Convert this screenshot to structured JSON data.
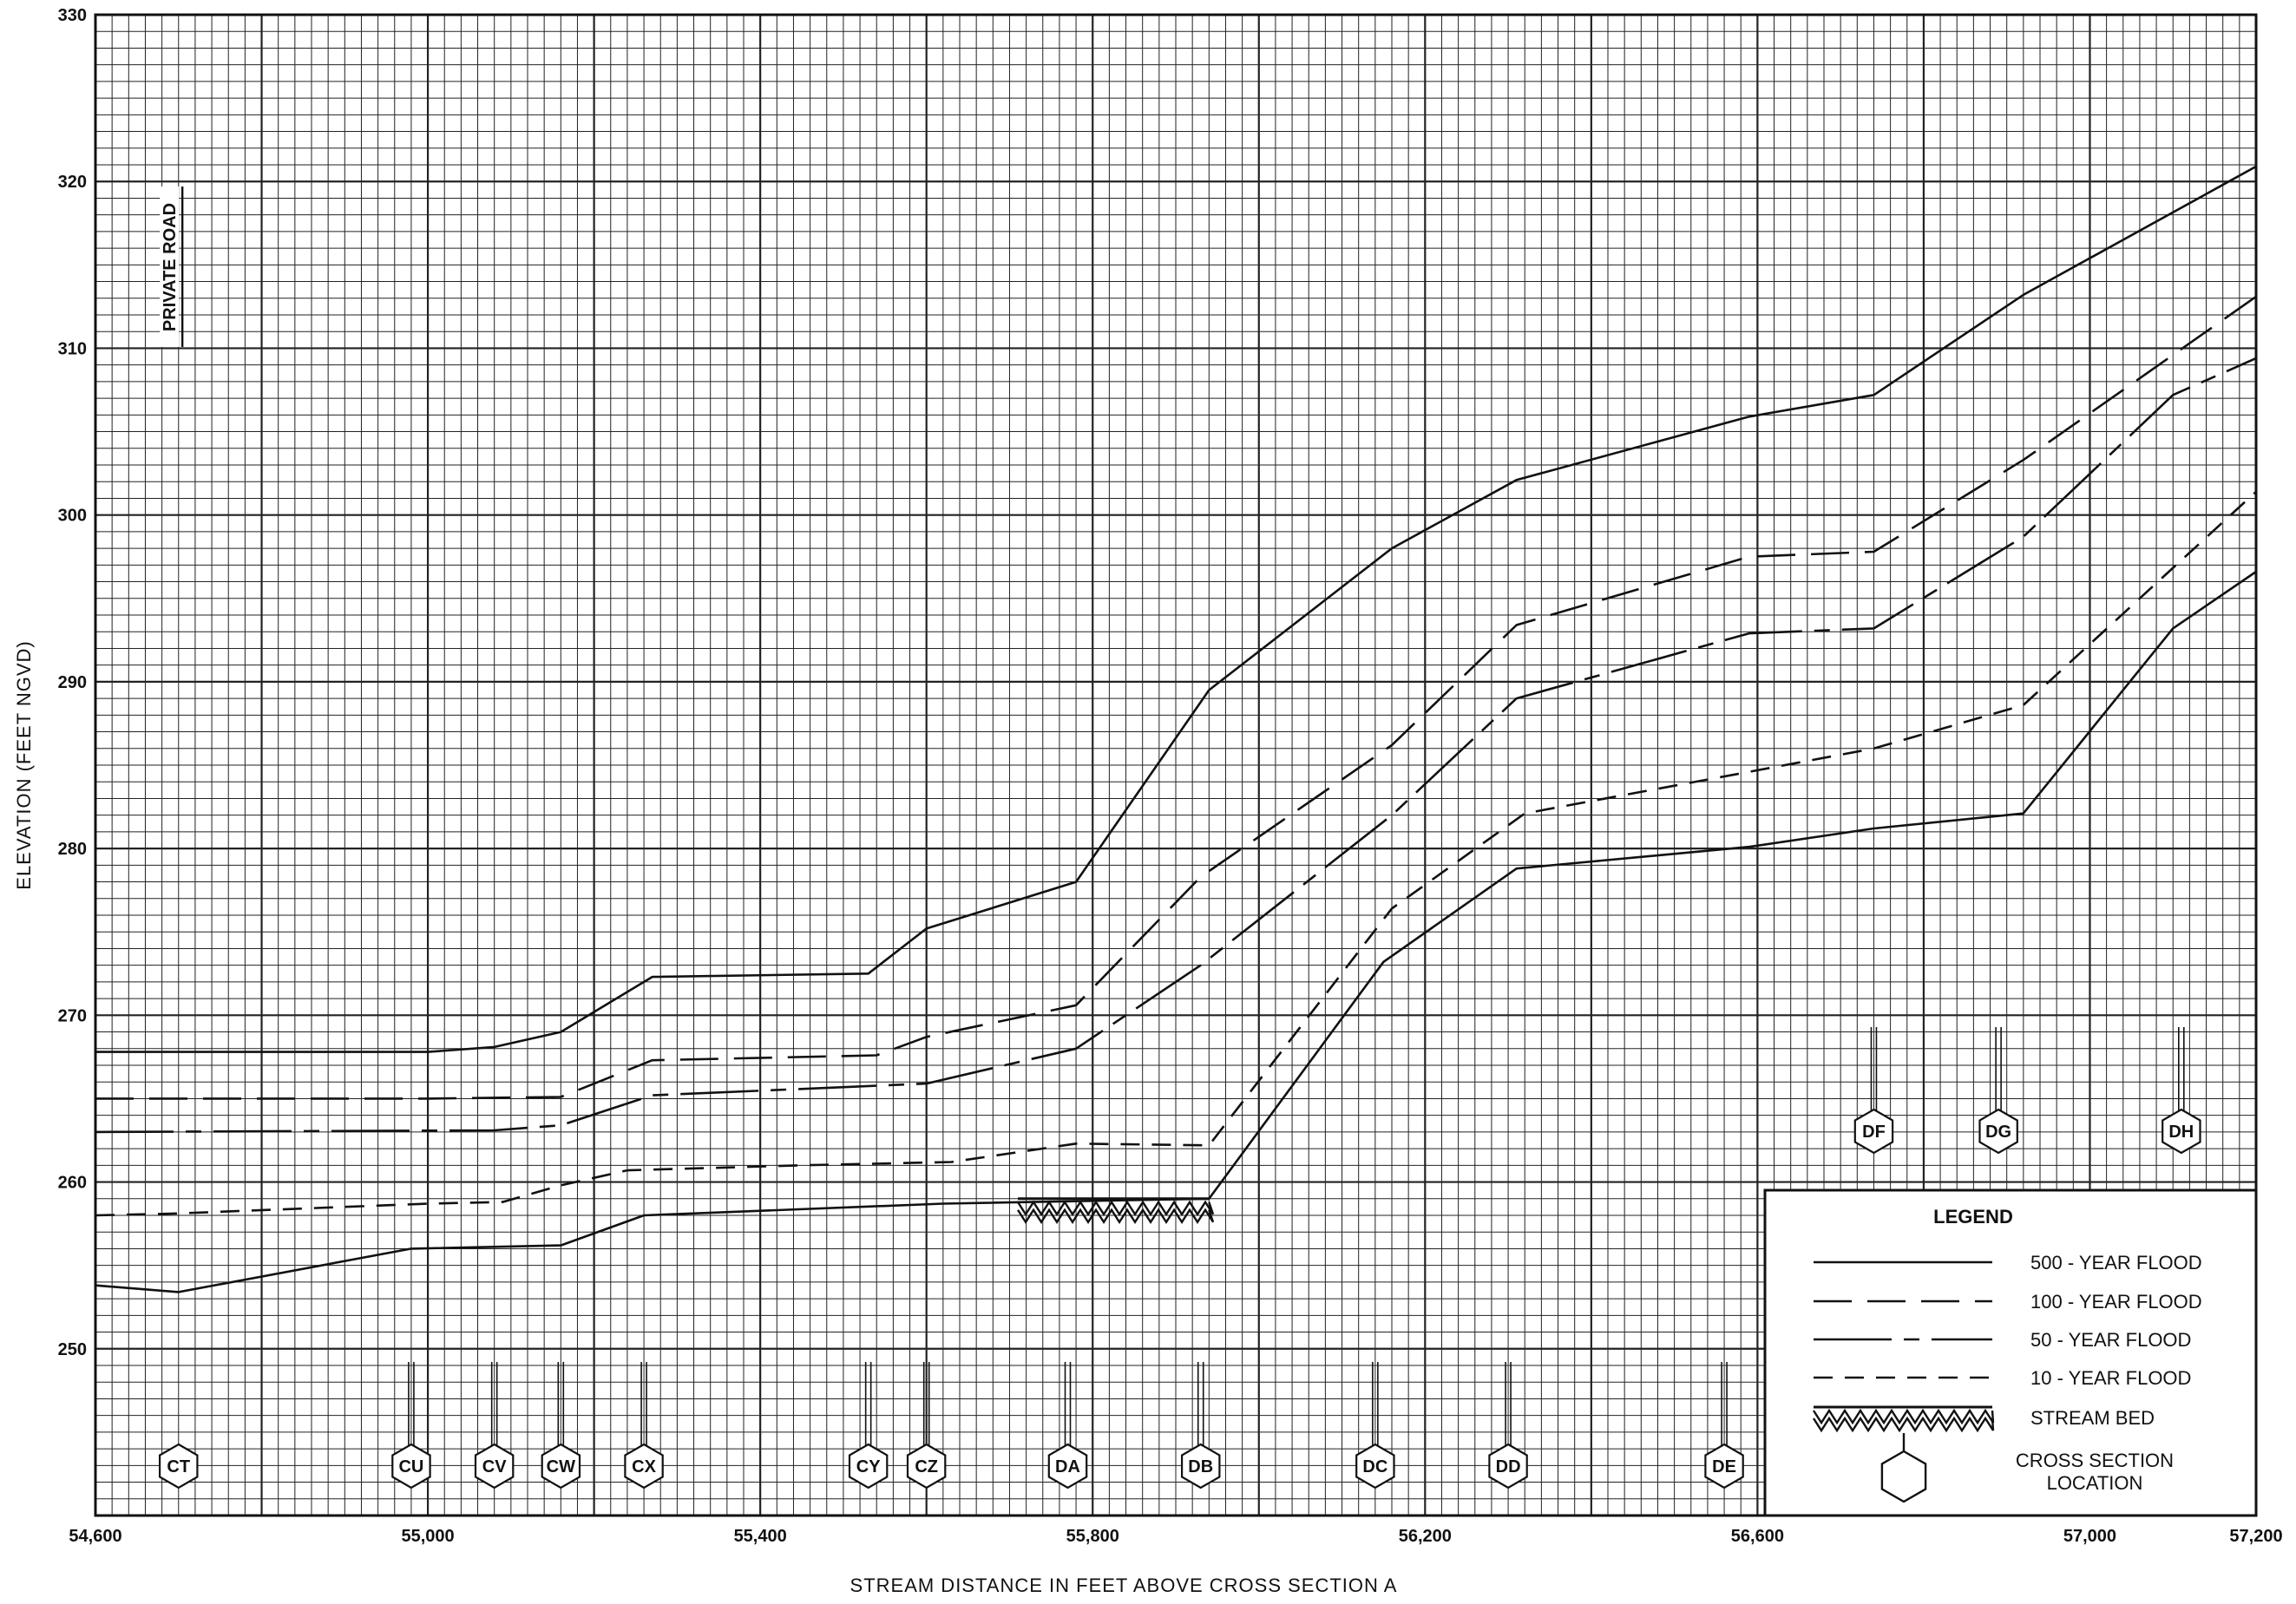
{
  "chart_data": {
    "type": "line",
    "title": "",
    "xlabel": "STREAM DISTANCE IN FEET ABOVE CROSS SECTION A",
    "ylabel": "ELEVATION (FEET NGVD)",
    "xlim": [
      54600,
      57200
    ],
    "ylim": [
      240,
      330
    ],
    "x_ticks": [
      54600,
      55000,
      55400,
      55800,
      56200,
      56600,
      57000,
      57200
    ],
    "x_tick_labels": [
      "54,600",
      "55,000",
      "55,400",
      "55,800",
      "56,200",
      "56,600",
      "57,000",
      "57,200"
    ],
    "y_ticks": [
      250,
      260,
      270,
      280,
      290,
      300,
      310,
      320,
      330
    ],
    "y_tick_labels": [
      "250",
      "260",
      "270",
      "280",
      "290",
      "300",
      "310",
      "320",
      "330"
    ],
    "grid": true,
    "legend_position": "bottom-right",
    "series": [
      {
        "name": "500 - YEAR FLOOD",
        "dash": "solid",
        "points": [
          [
            54600,
            267.8
          ],
          [
            55000,
            267.8
          ],
          [
            55080,
            268.1
          ],
          [
            55160,
            269.0
          ],
          [
            55270,
            272.3
          ],
          [
            55530,
            272.5
          ],
          [
            55600,
            275.2
          ],
          [
            55780,
            278.0
          ],
          [
            55940,
            289.5
          ],
          [
            56160,
            298.0
          ],
          [
            56310,
            302.1
          ],
          [
            56590,
            305.9
          ],
          [
            56740,
            307.2
          ],
          [
            56920,
            313.2
          ],
          [
            57200,
            320.9
          ]
        ]
      },
      {
        "name": "100 - YEAR FLOOD",
        "dash": "long-dash",
        "points": [
          [
            54600,
            265.0
          ],
          [
            54830,
            265.0
          ],
          [
            55000,
            265.0
          ],
          [
            55160,
            265.1
          ],
          [
            55270,
            267.3
          ],
          [
            55540,
            267.6
          ],
          [
            55600,
            268.7
          ],
          [
            55780,
            270.6
          ],
          [
            55930,
            278.3
          ],
          [
            56160,
            286.2
          ],
          [
            56310,
            293.4
          ],
          [
            56590,
            297.5
          ],
          [
            56740,
            297.8
          ],
          [
            56920,
            303.3
          ],
          [
            57200,
            313.1
          ]
        ]
      },
      {
        "name": "50 - YEAR FLOOD",
        "dash": "dash-dot",
        "points": [
          [
            54600,
            263.0
          ],
          [
            55080,
            263.1
          ],
          [
            55160,
            263.4
          ],
          [
            55270,
            265.2
          ],
          [
            55600,
            265.9
          ],
          [
            55780,
            268.0
          ],
          [
            55930,
            273.0
          ],
          [
            56160,
            282.0
          ],
          [
            56310,
            289.0
          ],
          [
            56590,
            292.9
          ],
          [
            56740,
            293.2
          ],
          [
            56920,
            298.7
          ],
          [
            57100,
            307.2
          ],
          [
            57200,
            309.4
          ]
        ]
      },
      {
        "name": "10 - YEAR FLOOD",
        "dash": "short-dash",
        "points": [
          [
            54600,
            258.0
          ],
          [
            54690,
            258.1
          ],
          [
            55000,
            258.7
          ],
          [
            55090,
            258.8
          ],
          [
            55160,
            259.8
          ],
          [
            55240,
            260.7
          ],
          [
            55450,
            261.0
          ],
          [
            55630,
            261.2
          ],
          [
            55780,
            262.3
          ],
          [
            55940,
            262.2
          ],
          [
            56160,
            276.4
          ],
          [
            56320,
            282.1
          ],
          [
            56590,
            284.6
          ],
          [
            56740,
            286.0
          ],
          [
            56920,
            288.6
          ],
          [
            57200,
            301.4
          ]
        ]
      },
      {
        "name": "STREAM BED",
        "dash": "solid",
        "points": [
          [
            54600,
            253.8
          ],
          [
            54700,
            253.4
          ],
          [
            54980,
            256.0
          ],
          [
            55160,
            256.2
          ],
          [
            55260,
            258.0
          ],
          [
            55620,
            258.7
          ],
          [
            55940,
            259.0
          ],
          [
            56150,
            273.2
          ],
          [
            56310,
            278.8
          ],
          [
            56590,
            280.1
          ],
          [
            56740,
            281.2
          ],
          [
            56920,
            282.1
          ],
          [
            57100,
            293.2
          ],
          [
            57200,
            296.6
          ]
        ]
      }
    ],
    "stream_bed_marker": {
      "x_start": 55710,
      "x_end": 55940,
      "elevation": 259.0
    },
    "cross_sections": [
      {
        "label": "CT",
        "x": 54700
      },
      {
        "label": "CU",
        "x": 54980
      },
      {
        "label": "CV",
        "x": 55080
      },
      {
        "label": "CW",
        "x": 55160
      },
      {
        "label": "CX",
        "x": 55260
      },
      {
        "label": "CY",
        "x": 55530
      },
      {
        "label": "CZ",
        "x": 55600
      },
      {
        "label": "DA",
        "x": 55770
      },
      {
        "label": "DB",
        "x": 55930
      },
      {
        "label": "DC",
        "x": 56140
      },
      {
        "label": "DD",
        "x": 56300
      },
      {
        "label": "DE",
        "x": 56560
      },
      {
        "label": "DF",
        "x": 56740
      },
      {
        "label": "DG",
        "x": 56890
      },
      {
        "label": "DH",
        "x": 57110
      }
    ],
    "annotations": [
      {
        "text": "PRIVATE ROAD",
        "x": 54690
      }
    ],
    "legend": {
      "title": "LEGEND",
      "entries": [
        {
          "label": "500 - YEAR FLOOD",
          "style": "solid"
        },
        {
          "label": "100 - YEAR FLOOD",
          "style": "long-dash"
        },
        {
          "label": "50 - YEAR FLOOD",
          "style": "dash-dot"
        },
        {
          "label": "10 - YEAR FLOOD",
          "style": "short-dash"
        },
        {
          "label": "STREAM BED",
          "style": "hatch"
        },
        {
          "label": "CROSS SECTION",
          "label2": "LOCATION",
          "style": "hexagon"
        }
      ]
    }
  }
}
